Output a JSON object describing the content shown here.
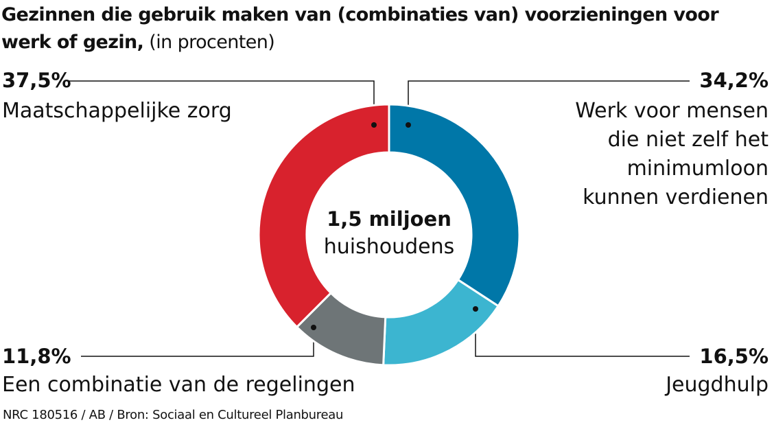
{
  "chart_data": {
    "type": "donut",
    "title": "Gezinnen die gebruik maken van (combinaties van) voorzieningen voor werk of gezin,",
    "subtitle": "(in procenten)",
    "categories": [
      "Werk voor mensen die niet zelf het minimumloon kunnen verdienen",
      "Jeugdhulp",
      "Een combinatie van de regelingen",
      "Maatschappelijke zorg"
    ],
    "values": [
      34.2,
      16.5,
      11.8,
      37.5
    ],
    "value_labels": [
      "34,2%",
      "16,5%",
      "11,8%",
      "37,5%"
    ],
    "colors": [
      "#0077a8",
      "#3cb5d0",
      "#6e7577",
      "#d8222d"
    ],
    "center_label": "1,5 miljoen",
    "center_sublabel": "huishoudens",
    "source": "NRC 180516 / AB / Bron: Sociaal en Cultureel Planbureau"
  }
}
